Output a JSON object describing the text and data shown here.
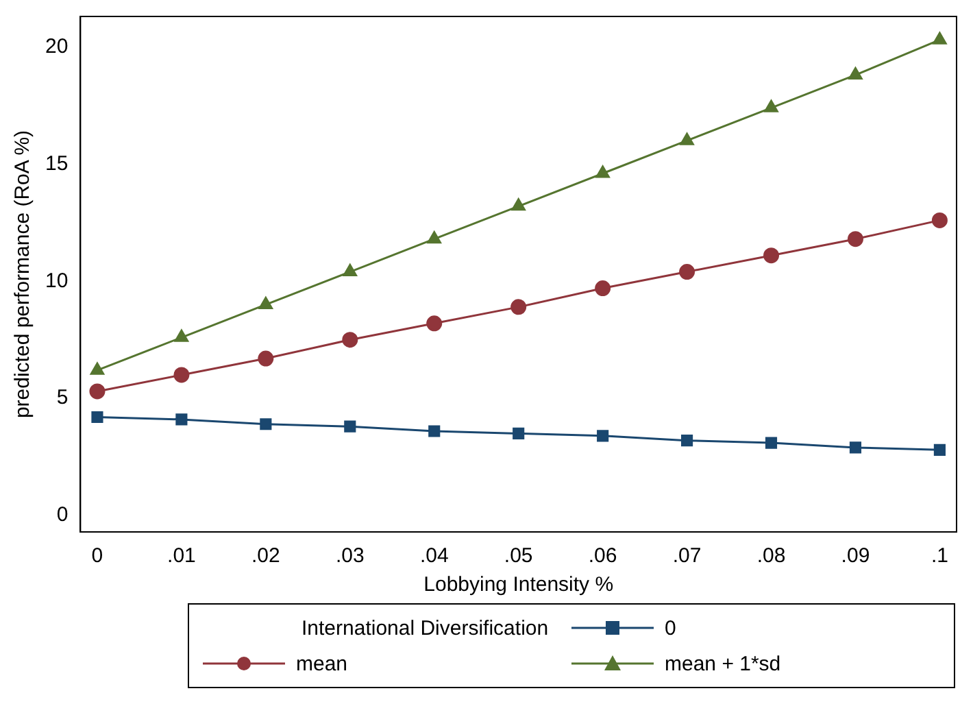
{
  "chart_data": {
    "type": "line",
    "xlabel": "Lobbying Intensity %",
    "ylabel": "predicted performance (RoA %)",
    "legend_title": "International Diversification",
    "legend": "bottom",
    "grid": false,
    "x": [
      0,
      0.01,
      0.02,
      0.03,
      0.04,
      0.05,
      0.06,
      0.07,
      0.08,
      0.09,
      0.1
    ],
    "xlim": [
      -0.002,
      0.102
    ],
    "xticks": [
      0,
      {
        "value": 0.01,
        "label": ".01"
      },
      {
        "value": 0.02,
        "label": ".02"
      },
      {
        "value": 0.03,
        "label": ".03"
      },
      {
        "value": 0.04,
        "label": ".04"
      },
      {
        "value": 0.05,
        "label": ".05"
      },
      {
        "value": 0.06,
        "label": ".06"
      },
      {
        "value": 0.07,
        "label": ".07"
      },
      {
        "value": 0.08,
        "label": ".08"
      },
      {
        "value": 0.09,
        "label": ".09"
      },
      {
        "value": 0.1,
        "label": ".1"
      }
    ],
    "ylim": [
      -0.7,
      21.3
    ],
    "yticks": [
      0,
      5,
      10,
      15,
      20
    ],
    "series": [
      {
        "name": "0",
        "color": "#1a476f",
        "marker": "square",
        "values": [
          4.2,
          4.1,
          3.9,
          3.8,
          3.6,
          3.5,
          3.4,
          3.2,
          3.1,
          2.9,
          2.8
        ]
      },
      {
        "name": "mean",
        "color": "#90353b",
        "marker": "circle",
        "values": [
          5.3,
          6.0,
          6.7,
          7.5,
          8.2,
          8.9,
          9.7,
          10.4,
          11.1,
          11.8,
          12.6
        ]
      },
      {
        "name": "mean + 1*sd",
        "color": "#55752f",
        "marker": "triangle",
        "values": [
          6.2,
          7.6,
          9.0,
          10.4,
          11.8,
          13.2,
          14.6,
          16.0,
          17.4,
          18.8,
          20.3
        ]
      }
    ]
  }
}
